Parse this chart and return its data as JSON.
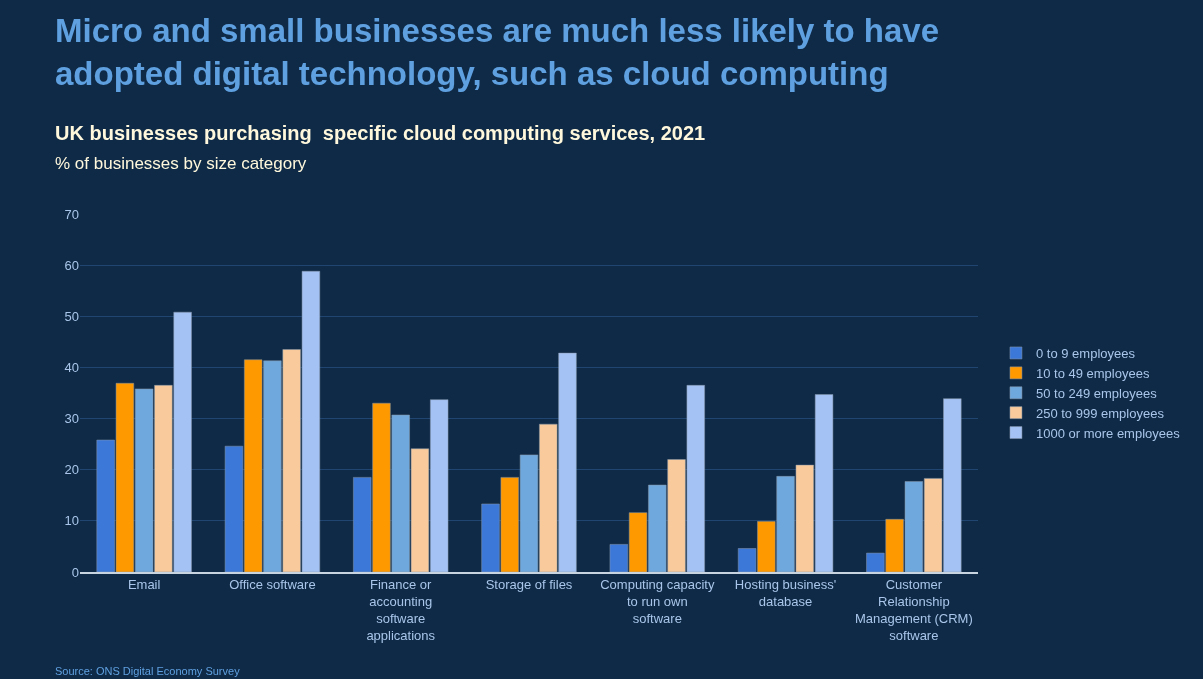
{
  "chart_data": {
    "type": "bar",
    "title": "Micro and small businesses are much less likely to have adopted digital technology, such as cloud computing",
    "subtitle": "UK businesses purchasing  specific cloud computing services, 2021",
    "ylabel": "% of businesses by size category",
    "categories": [
      "Email",
      "Office software",
      "Finance or accounting software applications",
      "Storage of files",
      "Computing capacity to run own software",
      "Hosting business' database",
      "Customer Relationship Management (CRM) software"
    ],
    "series": [
      {
        "name": "0 to 9 employees",
        "color": "#3c78d8",
        "values": [
          25.8,
          24.6,
          18.5,
          13.3,
          5.4,
          4.6,
          3.7
        ]
      },
      {
        "name": "10 to 49 employees",
        "color": "#ff9900",
        "values": [
          36.9,
          41.5,
          33.0,
          18.5,
          11.6,
          9.9,
          10.3
        ]
      },
      {
        "name": "50 to 249 employees",
        "color": "#6fa8dc",
        "values": [
          35.8,
          41.3,
          30.7,
          22.9,
          17.0,
          18.7,
          17.7
        ]
      },
      {
        "name": "250 to 999 employees",
        "color": "#f9cb9c",
        "values": [
          36.5,
          43.5,
          24.1,
          28.9,
          22.0,
          20.9,
          18.3
        ]
      },
      {
        "name": "1000 or more employees",
        "color": "#a4c2f4",
        "values": [
          50.8,
          58.8,
          33.7,
          42.8,
          36.5,
          34.7,
          33.9
        ]
      }
    ],
    "ylim": [
      0,
      70
    ],
    "yticks": [
      0,
      10,
      20,
      30,
      40,
      50,
      60,
      70
    ],
    "grid": "y",
    "legend": "right",
    "annotations": [
      "Source: ONS Digital Economy Survey"
    ]
  }
}
